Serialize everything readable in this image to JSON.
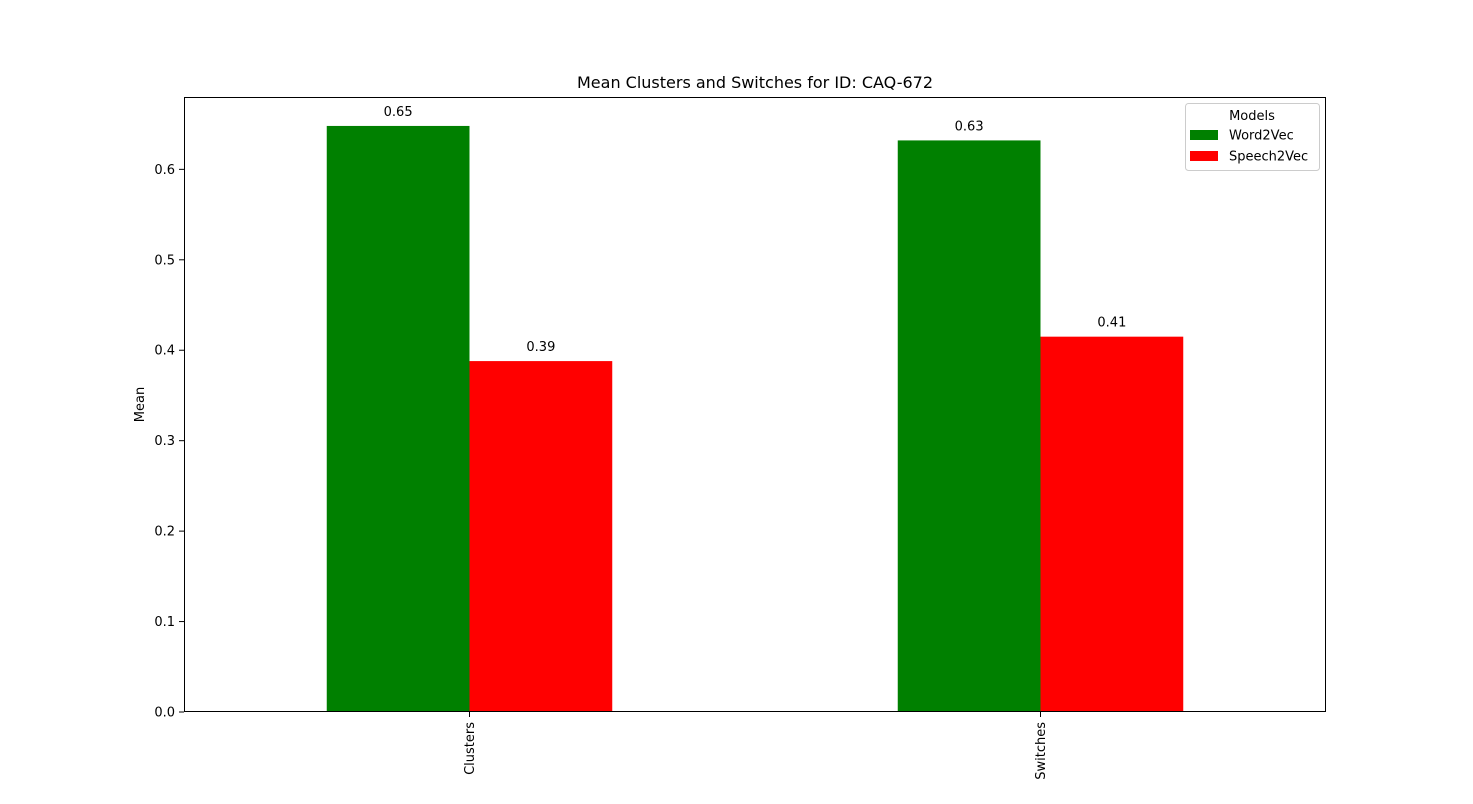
{
  "chart_data": {
    "type": "bar",
    "title": "Mean Clusters and Switches for ID: CAQ-672",
    "xlabel": "",
    "ylabel": "Mean",
    "categories": [
      "Clusters",
      "Switches"
    ],
    "series": [
      {
        "name": "Word2Vec",
        "color": "#008000",
        "values": [
          0.648,
          0.632
        ],
        "labels": [
          "0.65",
          "0.63"
        ]
      },
      {
        "name": "Speech2Vec",
        "color": "#ff0000",
        "values": [
          0.388,
          0.415
        ],
        "labels": [
          "0.39",
          "0.41"
        ]
      }
    ],
    "ylim": [
      0,
      0.68
    ],
    "yticks": [
      0.0,
      0.1,
      0.2,
      0.3,
      0.4,
      0.5,
      0.6
    ],
    "ytick_labels": [
      "0.0",
      "0.1",
      "0.2",
      "0.3",
      "0.4",
      "0.5",
      "0.6"
    ],
    "grid": false,
    "legend": {
      "title": "Models",
      "placement": "top-right"
    }
  }
}
